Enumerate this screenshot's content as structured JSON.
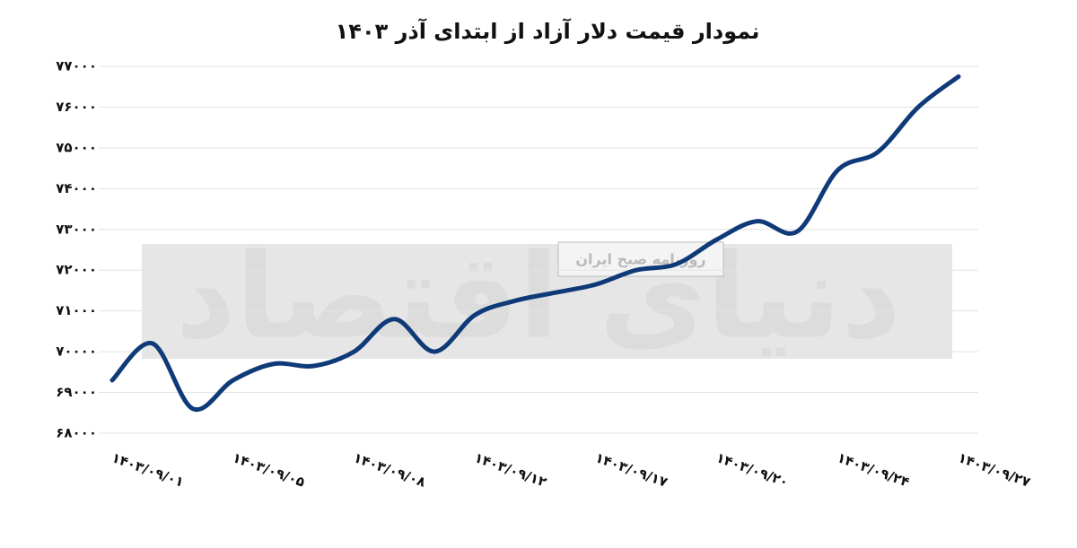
{
  "chart_data": {
    "type": "line",
    "title": "نمودار قیمت دلار آزاد از ابتدای آذر ۱۴۰۳",
    "watermark": [
      "دنیای اقتصاد",
      "روزنامه صبح ایران"
    ],
    "categories": [
      "۱۴۰۳/۰۹/۰۱",
      null,
      null,
      "۱۴۰۳/۰۹/۰۵",
      null,
      null,
      "۱۴۰۳/۰۹/۰۸",
      null,
      null,
      "۱۴۰۳/۰۹/۱۲",
      null,
      null,
      "۱۴۰۳/۰۹/۱۷",
      null,
      null,
      "۱۴۰۳/۰۹/۲۰",
      null,
      null,
      "۱۴۰۳/۰۹/۲۴",
      null,
      null,
      "۱۴۰۳/۰۹/۲۷"
    ],
    "series": [
      {
        "color": "#0f3a78",
        "values": [
          69300,
          70200,
          68600,
          69300,
          69700,
          69650,
          70000,
          70800,
          70000,
          70900,
          71250,
          71450,
          71650,
          72000,
          72150,
          72750,
          73200,
          72950,
          74450,
          74900,
          76000,
          76750
        ]
      }
    ],
    "ylim": [
      68000,
      77000
    ],
    "yticks": [
      {
        "value": 68000,
        "label": "۶۸۰۰۰"
      },
      {
        "value": 69000,
        "label": "۶۹۰۰۰"
      },
      {
        "value": 70000,
        "label": "۷۰۰۰۰"
      },
      {
        "value": 71000,
        "label": "۷۱۰۰۰"
      },
      {
        "value": 72000,
        "label": "۷۲۰۰۰"
      },
      {
        "value": 73000,
        "label": "۷۳۰۰۰"
      },
      {
        "value": 74000,
        "label": "۷۴۰۰۰"
      },
      {
        "value": 75000,
        "label": "۷۵۰۰۰"
      },
      {
        "value": 76000,
        "label": "۷۶۰۰۰"
      },
      {
        "value": 77000,
        "label": "۷۷۰۰۰"
      }
    ],
    "grid": true
  }
}
